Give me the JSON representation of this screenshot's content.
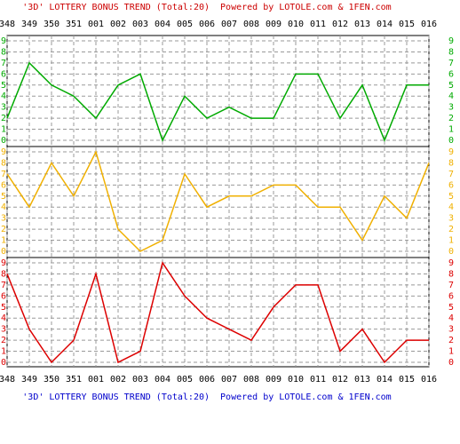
{
  "chart_data": [
    {
      "type": "line",
      "title": "'3D' LOTTERY BONUS TREND (Total:20)  Powered by LOTOLE.com & 1FEN.com",
      "title_color": "#cc0000",
      "categories": [
        "348",
        "349",
        "350",
        "351",
        "001",
        "002",
        "003",
        "004",
        "005",
        "006",
        "007",
        "008",
        "009",
        "010",
        "011",
        "012",
        "013",
        "014",
        "015",
        "016"
      ],
      "values": [
        2,
        7,
        5,
        4,
        2,
        5,
        6,
        0,
        4,
        2,
        3,
        2,
        2,
        6,
        6,
        2,
        5,
        0,
        5,
        5
      ],
      "color": "#00aa00",
      "ylim": [
        0,
        9
      ],
      "yticks": [
        0,
        1,
        2,
        3,
        4,
        5,
        6,
        7,
        8,
        9
      ],
      "grid": true
    },
    {
      "type": "line",
      "values": [
        7,
        4,
        8,
        5,
        9,
        2,
        0,
        1,
        7,
        4,
        5,
        5,
        6,
        6,
        4,
        4,
        1,
        5,
        3,
        8
      ],
      "color": "#f0b000",
      "ylim": [
        0,
        9
      ],
      "yticks": [
        0,
        1,
        2,
        3,
        4,
        5,
        6,
        7,
        8,
        9
      ],
      "grid": true
    },
    {
      "type": "line",
      "title": "'3D' LOTTERY BONUS TREND (Total:20)  Powered by LOTOLE.com & 1FEN.com",
      "title_color": "#0000cc",
      "categories": [
        "348",
        "349",
        "350",
        "351",
        "001",
        "002",
        "003",
        "004",
        "005",
        "006",
        "007",
        "008",
        "009",
        "010",
        "011",
        "012",
        "013",
        "014",
        "015",
        "016"
      ],
      "values": [
        8,
        3,
        0,
        2,
        8,
        0,
        1,
        9,
        6,
        4,
        3,
        2,
        5,
        7,
        7,
        1,
        3,
        0,
        2,
        2
      ],
      "color": "#dd0000",
      "ylim": [
        0,
        9
      ],
      "yticks": [
        0,
        1,
        2,
        3,
        4,
        5,
        6,
        7,
        8,
        9
      ],
      "grid": true
    }
  ]
}
